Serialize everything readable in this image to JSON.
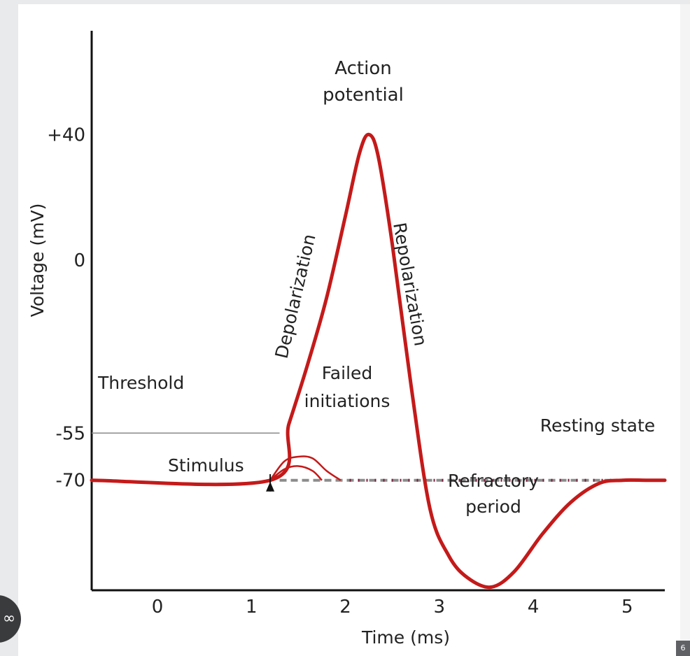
{
  "chart_data": {
    "type": "line",
    "xlabel": "Time (ms)",
    "ylabel": "Voltage (mV)",
    "xlim": [
      -0.7,
      5.4
    ],
    "ylim": [
      -105,
      73
    ],
    "x_ticks": [
      "0",
      "1",
      "2",
      "3",
      "4",
      "5"
    ],
    "y_ticks": [
      "+40",
      "0",
      "-55",
      "-70"
    ],
    "y_tick_values": [
      40,
      0,
      -55,
      -70
    ],
    "x_tick_values": [
      0,
      1,
      2,
      3,
      4,
      5
    ],
    "series": [
      {
        "values_x": [
          -0.7,
          1.2,
          1.4,
          1.6,
          1.8,
          2.0,
          2.15,
          2.25,
          2.35,
          2.5,
          2.7,
          2.9,
          3.1,
          3.3,
          3.55,
          3.8,
          4.1,
          4.4,
          4.7,
          4.95,
          5.2,
          5.4
        ],
        "values_y": [
          -70,
          -70,
          -52,
          -33,
          -12,
          14,
          34,
          40,
          33,
          5,
          -40,
          -79,
          -94,
          -101,
          -104,
          -99,
          -87,
          -77,
          -71,
          -70,
          -70,
          -70
        ]
      }
    ],
    "failed_initiations": [
      {
        "x": [
          1.2,
          1.35,
          1.5,
          1.65,
          1.8,
          1.95
        ],
        "y": [
          -70,
          -64,
          -62.5,
          -63,
          -67,
          -70
        ]
      },
      {
        "x": [
          1.2,
          1.35,
          1.5,
          1.65,
          1.75
        ],
        "y": [
          -70,
          -66.5,
          -65.5,
          -67,
          -70
        ]
      }
    ],
    "threshold": {
      "y": -55,
      "x_end": 1.3
    },
    "resting": {
      "y": -70,
      "x_start": 1.3,
      "x_end": 5.4
    },
    "stimulus_x": 1.2,
    "annotations": {
      "action_potential": [
        "Action",
        "potential"
      ],
      "depolarization": "Depolarization",
      "repolarization": "Repolarization",
      "threshold": "Threshold",
      "failed": [
        "Failed",
        "initiations"
      ],
      "resting": "Resting state",
      "stimulus": "Stimulus",
      "refractory": [
        "Refractory",
        "period"
      ]
    },
    "colors": {
      "curve": "#c41a1a",
      "axis": "#111111",
      "threshold": "#8a8a8a",
      "resting_dash": "#8c8c8c",
      "resting_dot": "#7a1d3a"
    }
  },
  "corner_badge": "6",
  "fab_icon": "link-icon"
}
